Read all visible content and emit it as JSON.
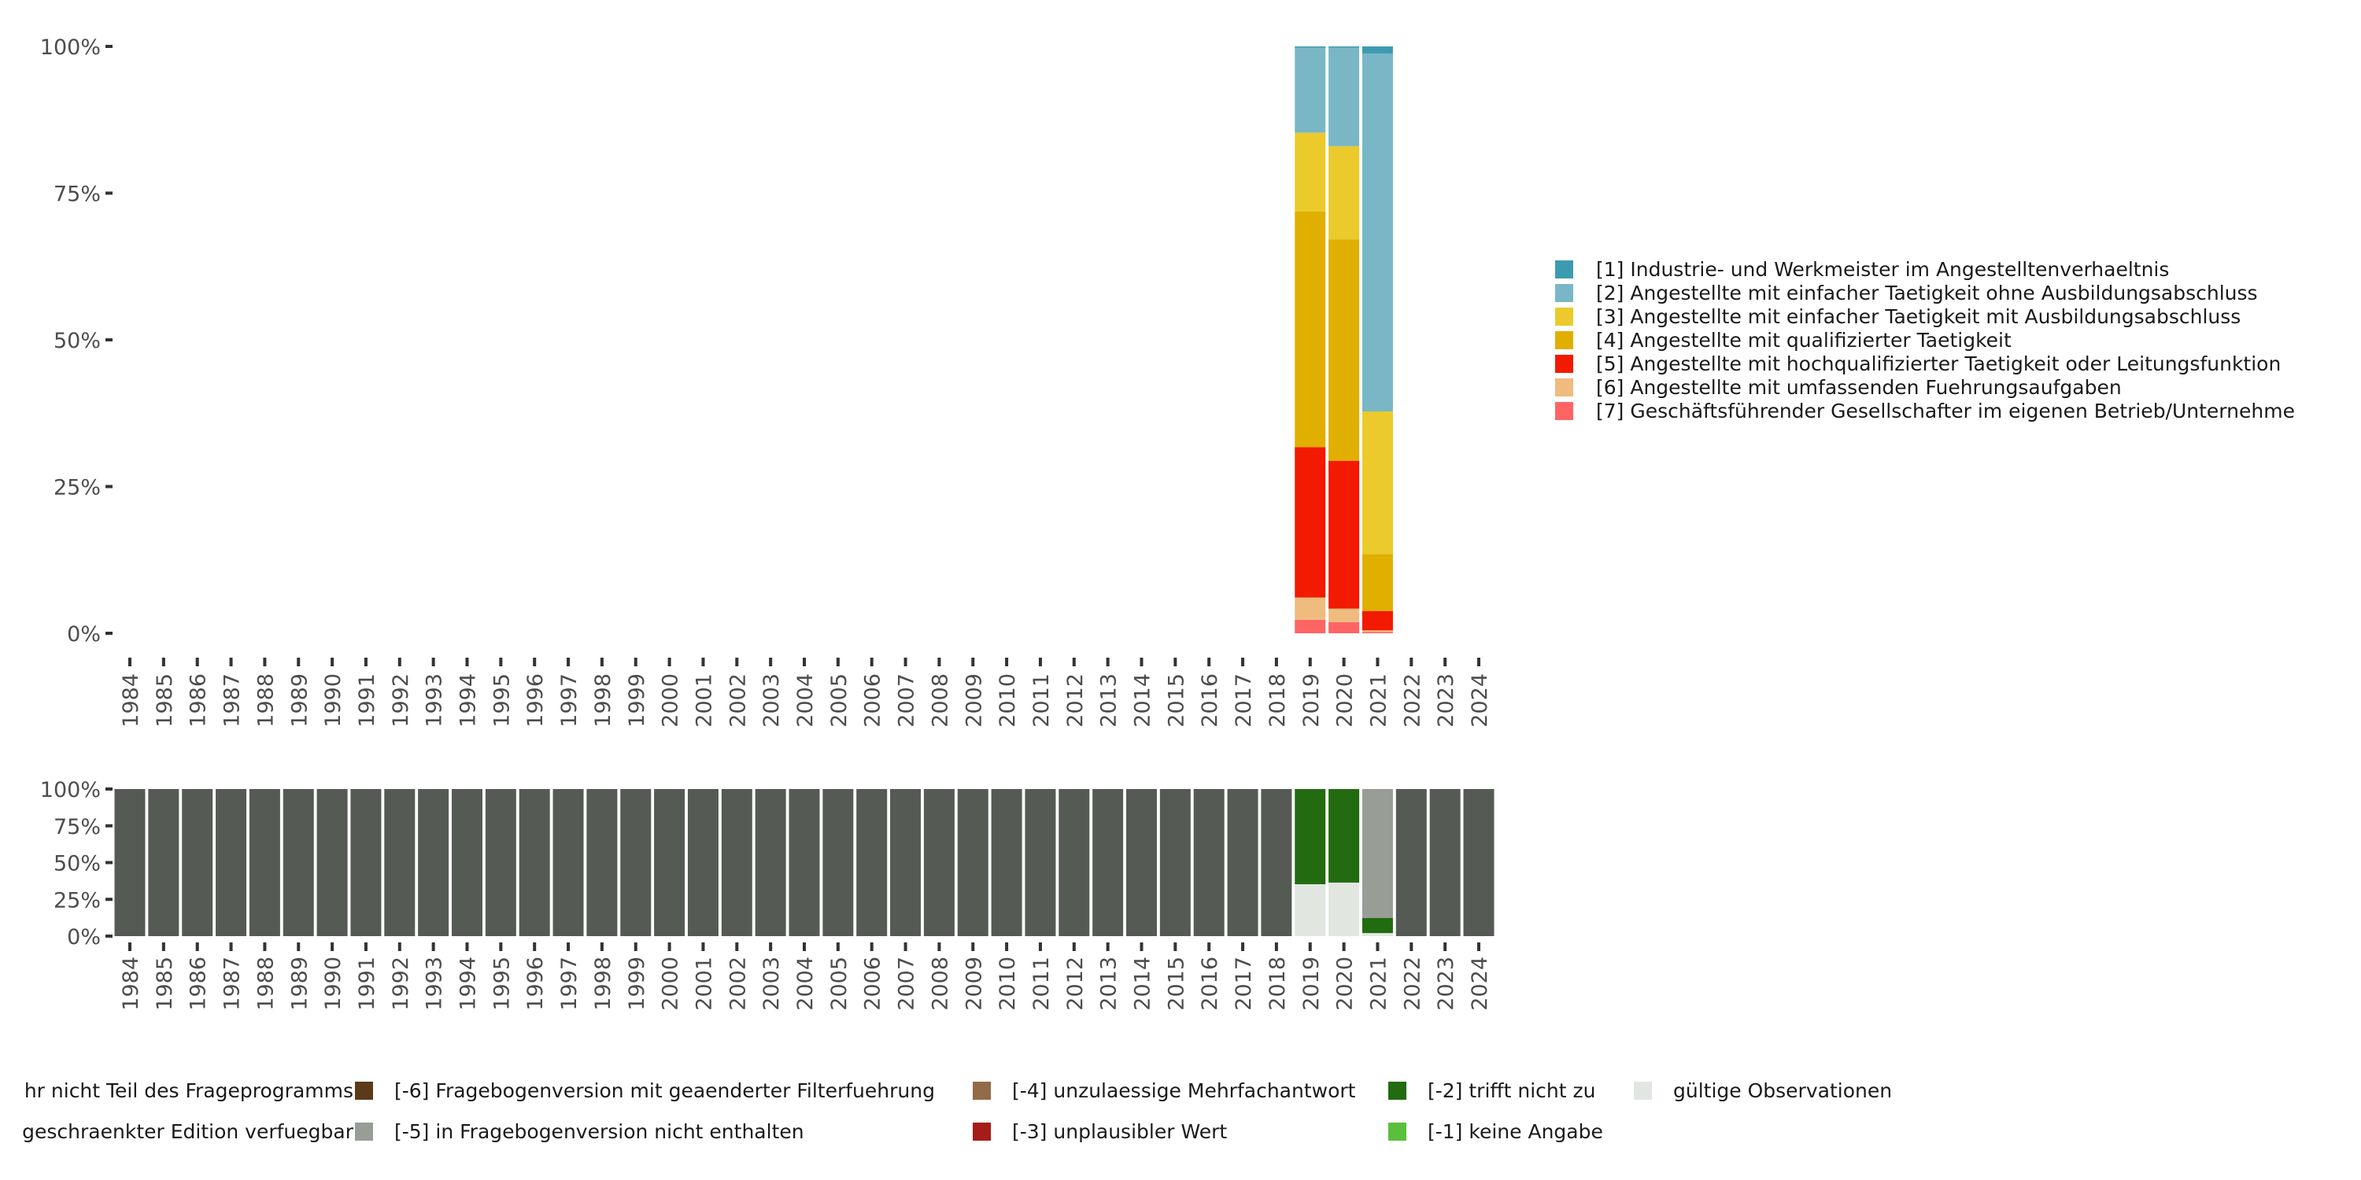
{
  "chart_data": [
    {
      "type": "bar",
      "stacked": true,
      "title": "",
      "xlabel": "",
      "ylabel": "",
      "ylim": [
        0,
        100
      ],
      "yticks": [
        "0%",
        "25%",
        "50%",
        "75%",
        "100%"
      ],
      "categories": [
        "1984",
        "1985",
        "1986",
        "1987",
        "1988",
        "1989",
        "1990",
        "1991",
        "1992",
        "1993",
        "1994",
        "1995",
        "1996",
        "1997",
        "1998",
        "1999",
        "2000",
        "2001",
        "2002",
        "2003",
        "2004",
        "2005",
        "2006",
        "2007",
        "2008",
        "2009",
        "2010",
        "2011",
        "2012",
        "2013",
        "2014",
        "2015",
        "2016",
        "2017",
        "2018",
        "2019",
        "2020",
        "2021",
        "2022",
        "2023",
        "2024"
      ],
      "legend_position": "right",
      "series_by_year": {
        "2019": [
          0.2,
          14.5,
          13.4,
          40.2,
          25.6,
          3.8,
          2.3
        ],
        "2020": [
          0.2,
          16.8,
          15.9,
          37.7,
          25.2,
          2.3,
          1.9
        ],
        "2021": [
          1.2,
          61.0,
          24.3,
          9.7,
          3.3,
          0.3,
          0.2
        ]
      },
      "series": [
        {
          "name": "[1] Industrie- und Werkmeister im Angestelltenverhaeltnis",
          "color": "#3d9bb1"
        },
        {
          "name": "[2] Angestellte mit einfacher Taetigkeit ohne Ausbildungsabschluss",
          "color": "#79b7c6"
        },
        {
          "name": "[3] Angestellte mit einfacher Taetigkeit mit Ausbildungsabschluss",
          "color": "#ebca2b"
        },
        {
          "name": "[4] Angestellte mit qualifizierter Taetigkeit",
          "color": "#e0af00"
        },
        {
          "name": "[5] Angestellte mit hochqualifizierter Taetigkeit oder Leitungsfunktion",
          "color": "#f21a00"
        },
        {
          "name": "[6] Angestellte mit umfassenden Fuehrungsaufgaben",
          "color": "#f0bb7e"
        },
        {
          "name": "[7] Geschäftsführender Gesellschafter im eigenen Betrieb/Unternehme",
          "color": "#ff6464"
        }
      ]
    },
    {
      "type": "bar",
      "stacked": true,
      "title": "",
      "ylim": [
        0,
        100
      ],
      "yticks": [
        "0%",
        "25%",
        "50%",
        "75%",
        "100%"
      ],
      "legend_position": "bottom",
      "default_series": 0,
      "series_by_year": {
        "2019": [
          0,
          0,
          0,
          0,
          0,
          64.7,
          0,
          35.3,
          0
        ],
        "2020": [
          0,
          0,
          0,
          0,
          0,
          63.6,
          0,
          36.4,
          0
        ],
        "2021": [
          0,
          0,
          87.7,
          0,
          0,
          10.2,
          0,
          2.1,
          0
        ]
      },
      "series": [
        {
          "name": "hr nicht Teil des Frageprogramms",
          "color": "#555b54"
        },
        {
          "name": "[-6] Fragebogenversion mit geaenderter Filterfuehrung",
          "color": "#5a3a18"
        },
        {
          "name": "[-5] in Fragebogenversion nicht enthalten",
          "color": "#989d96"
        },
        {
          "name": "[-4] unzulaessige Mehrfachantwort",
          "color": "#936b48"
        },
        {
          "name": "[-3] unplausibler Wert",
          "color": "#a51c18"
        },
        {
          "name": "[-2] trifft nicht zu",
          "color": "#226b10"
        },
        {
          "name": "[-1] keine Angabe",
          "color": "#5abf3c"
        },
        {
          "name": "gültige Observationen",
          "color": "#e1e6e1"
        },
        {
          "name": "geschraenkter Edition verfuegbar",
          "color": "#777777"
        }
      ]
    }
  ]
}
